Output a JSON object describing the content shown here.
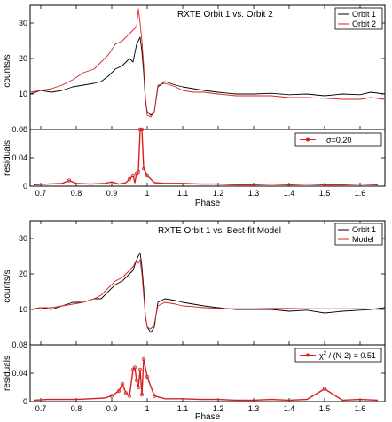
{
  "chart_data": [
    {
      "type": "line",
      "panel": "top-upper",
      "title": "RXTE Orbit 1 vs. Orbit 2",
      "xlabel": "",
      "ylabel": "counts/s",
      "xlim": [
        0.67,
        1.67
      ],
      "ylim": [
        0,
        35
      ],
      "yticks": [
        10,
        20,
        30
      ],
      "xticks": [],
      "legend_placement": "top-right",
      "series": [
        {
          "name": "Orbit 1",
          "color": "#000000",
          "x": [
            0.67,
            0.7,
            0.73,
            0.76,
            0.79,
            0.82,
            0.85,
            0.87,
            0.89,
            0.91,
            0.93,
            0.95,
            0.96,
            0.97,
            0.975,
            0.98,
            0.985,
            0.99,
            0.995,
            1.0,
            1.01,
            1.02,
            1.03,
            1.05,
            1.08,
            1.1,
            1.13,
            1.16,
            1.2,
            1.25,
            1.3,
            1.35,
            1.4,
            1.45,
            1.5,
            1.55,
            1.6,
            1.63,
            1.67
          ],
          "y": [
            10,
            11,
            10.5,
            11,
            12,
            12.5,
            13,
            13.5,
            15,
            17,
            18,
            20,
            19,
            24,
            25,
            26,
            22,
            16,
            8,
            5,
            4,
            5,
            12,
            13.5,
            12.5,
            12,
            11.5,
            11,
            10.5,
            10,
            10,
            10.2,
            9.8,
            10,
            9.5,
            10,
            9.8,
            10.5,
            10
          ]
        },
        {
          "name": "Orbit 2",
          "color": "#d62020",
          "x": [
            0.67,
            0.7,
            0.73,
            0.76,
            0.79,
            0.82,
            0.85,
            0.87,
            0.89,
            0.91,
            0.93,
            0.95,
            0.96,
            0.97,
            0.975,
            0.98,
            0.985,
            0.99,
            0.995,
            1.0,
            1.01,
            1.02,
            1.03,
            1.05,
            1.08,
            1.1,
            1.13,
            1.16,
            1.2,
            1.25,
            1.3,
            1.35,
            1.4,
            1.45,
            1.5,
            1.55,
            1.6,
            1.63,
            1.67
          ],
          "y": [
            10.5,
            11,
            11.5,
            12.5,
            14,
            16,
            17,
            19,
            21,
            24,
            25,
            27,
            28,
            29,
            34,
            30,
            25,
            18,
            9,
            4,
            3.5,
            5,
            12.5,
            13,
            12,
            11,
            10.5,
            10.5,
            10,
            9.5,
            9.5,
            9.5,
            9,
            9,
            8.8,
            8.5,
            8.5,
            9,
            8.5
          ]
        }
      ]
    },
    {
      "type": "line",
      "panel": "top-lower",
      "title": "",
      "xlabel": "Phase",
      "ylabel": "residuals",
      "xlim": [
        0.67,
        1.67
      ],
      "ylim": [
        0,
        0.08
      ],
      "yticks": [
        0,
        0.04,
        0.08
      ],
      "xticks": [
        0.7,
        0.8,
        0.9,
        1,
        1.1,
        1.2,
        1.3,
        1.4,
        1.5,
        1.6
      ],
      "legend_placement": "top-right",
      "series": [
        {
          "name": "σ=0.20",
          "color": "#d62020",
          "x": [
            0.68,
            0.72,
            0.76,
            0.78,
            0.8,
            0.84,
            0.88,
            0.9,
            0.92,
            0.94,
            0.95,
            0.96,
            0.965,
            0.97,
            0.975,
            0.98,
            0.985,
            0.99,
            1.0,
            1.02,
            1.05,
            1.1,
            1.15,
            1.2,
            1.25,
            1.3,
            1.35,
            1.4,
            1.45,
            1.5,
            1.55,
            1.6,
            1.65
          ],
          "y": [
            0.002,
            0.003,
            0.004,
            0.008,
            0.004,
            0.003,
            0.004,
            0.006,
            0.003,
            0.005,
            0.01,
            0.015,
            0.005,
            0.018,
            0.02,
            0.08,
            0.08,
            0.025,
            0.015,
            0.005,
            0.004,
            0.004,
            0.003,
            0.003,
            0.002,
            0.002,
            0.003,
            0.002,
            0.003,
            0.002,
            0.002,
            0.003,
            0.002
          ]
        }
      ]
    },
    {
      "type": "line",
      "panel": "bottom-upper",
      "title": "RXTE Orbit 1 vs. Best-fit Model",
      "xlabel": "",
      "ylabel": "counts/s",
      "xlim": [
        0.67,
        1.67
      ],
      "ylim": [
        0,
        35
      ],
      "yticks": [
        10,
        20,
        30
      ],
      "xticks": [],
      "legend_placement": "top-right",
      "series": [
        {
          "name": "Orbit 1",
          "color": "#000000",
          "x": [
            0.67,
            0.7,
            0.73,
            0.76,
            0.79,
            0.82,
            0.85,
            0.87,
            0.89,
            0.91,
            0.93,
            0.95,
            0.96,
            0.97,
            0.975,
            0.98,
            0.985,
            0.99,
            0.995,
            1.0,
            1.01,
            1.02,
            1.03,
            1.05,
            1.08,
            1.1,
            1.13,
            1.16,
            1.2,
            1.25,
            1.3,
            1.35,
            1.4,
            1.45,
            1.5,
            1.55,
            1.6,
            1.63,
            1.67
          ],
          "y": [
            10,
            10.5,
            10,
            11,
            12,
            12,
            13,
            13,
            15,
            17,
            18,
            20,
            21,
            24,
            25,
            26,
            22,
            16,
            8,
            5,
            3.5,
            5,
            12,
            13,
            12.5,
            12,
            11.5,
            11,
            10.5,
            10,
            10,
            10,
            9.5,
            9.8,
            9,
            9.5,
            9.8,
            10,
            10.5
          ]
        },
        {
          "name": "Model",
          "color": "#d62020",
          "x": [
            0.67,
            0.7,
            0.73,
            0.76,
            0.79,
            0.82,
            0.85,
            0.87,
            0.89,
            0.91,
            0.93,
            0.95,
            0.96,
            0.97,
            0.975,
            0.98,
            0.985,
            0.99,
            0.995,
            1.0,
            1.01,
            1.02,
            1.03,
            1.05,
            1.08,
            1.1,
            1.13,
            1.16,
            1.2,
            1.25,
            1.3,
            1.35,
            1.4,
            1.45,
            1.5,
            1.55,
            1.6,
            1.63,
            1.67
          ],
          "y": [
            10,
            10.5,
            10.5,
            11,
            11.5,
            12,
            13,
            14,
            16,
            18,
            19,
            21,
            22,
            24,
            23,
            24,
            20,
            14,
            8,
            5,
            4.5,
            6,
            11,
            12,
            11.5,
            11,
            10.8,
            10.5,
            10.3,
            10.2,
            10.2,
            10.3,
            10.3,
            10.2,
            10.2,
            10.2,
            10.2,
            10.1,
            10
          ]
        }
      ]
    },
    {
      "type": "line",
      "panel": "bottom-lower",
      "title": "",
      "xlabel": "Phase",
      "ylabel": "residuals",
      "xlim": [
        0.67,
        1.67
      ],
      "ylim": [
        0,
        0.08
      ],
      "yticks": [
        0,
        0.04,
        0.08
      ],
      "xticks": [
        0.7,
        0.8,
        0.9,
        1,
        1.1,
        1.2,
        1.3,
        1.4,
        1.5,
        1.6
      ],
      "legend_placement": "top-right",
      "series": [
        {
          "name": "χ² / (N-2) = 0.51",
          "color": "#d62020",
          "x": [
            0.68,
            0.72,
            0.76,
            0.8,
            0.84,
            0.88,
            0.9,
            0.92,
            0.93,
            0.94,
            0.95,
            0.96,
            0.965,
            0.97,
            0.975,
            0.98,
            0.985,
            0.99,
            1.0,
            1.02,
            1.05,
            1.1,
            1.15,
            1.2,
            1.25,
            1.3,
            1.35,
            1.4,
            1.45,
            1.5,
            1.55,
            1.6,
            1.65
          ],
          "y": [
            0.002,
            0.003,
            0.003,
            0.003,
            0.004,
            0.005,
            0.008,
            0.015,
            0.025,
            0.012,
            0.008,
            0.045,
            0.048,
            0.03,
            0.02,
            0.045,
            0.01,
            0.06,
            0.035,
            0.008,
            0.004,
            0.004,
            0.003,
            0.003,
            0.002,
            0.002,
            0.003,
            0.002,
            0.003,
            0.018,
            0.002,
            0.003,
            0.002
          ]
        }
      ]
    }
  ],
  "legends": {
    "top_orbit1": "Orbit 1",
    "top_orbit2": "Orbit 2",
    "top_sigma_symbol": "σ",
    "top_sigma_value": "=0.20",
    "bottom_orbit1": "Orbit 1",
    "bottom_model": "Model",
    "bottom_chi_prefix": "χ",
    "bottom_chi_sup": "2",
    "bottom_chi_suffix": " / (N-2) = 0.51"
  },
  "labels": {
    "phase_top": "Phase",
    "phase_bottom": "Phase",
    "counts_top": "counts/s",
    "counts_bottom": "counts/s",
    "residuals_top": "residuals",
    "residuals_bottom": "residuals",
    "title_top": "RXTE Orbit 1 vs. Orbit 2",
    "title_bottom": "RXTE Orbit 1 vs. Best-fit Model"
  }
}
